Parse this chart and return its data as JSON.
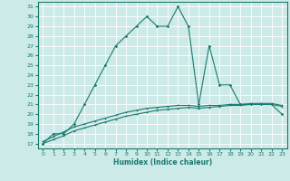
{
  "xlabel": "Humidex (Indice chaleur)",
  "background_color": "#cceae7",
  "line_color": "#1a7a6e",
  "grid_color": "#ffffff",
  "xlim": [
    -0.5,
    23.5
  ],
  "ylim": [
    16.5,
    31.5
  ],
  "yticks": [
    17,
    18,
    19,
    20,
    21,
    22,
    23,
    24,
    25,
    26,
    27,
    28,
    29,
    30,
    31
  ],
  "xticks": [
    0,
    1,
    2,
    3,
    4,
    5,
    6,
    7,
    8,
    9,
    10,
    11,
    12,
    13,
    14,
    15,
    16,
    17,
    18,
    19,
    20,
    21,
    22,
    23
  ],
  "series1_x": [
    0,
    1,
    2,
    3,
    4,
    5,
    6,
    7,
    8,
    9,
    10,
    11,
    12,
    13,
    14,
    15,
    16,
    17,
    18,
    19,
    20,
    21,
    22,
    23
  ],
  "series1_y": [
    17,
    18,
    18,
    19,
    21,
    23,
    25,
    27,
    28,
    29,
    30,
    29,
    29,
    31,
    29,
    21,
    27,
    23,
    23,
    21,
    21,
    21,
    21,
    20
  ],
  "series2_x": [
    0,
    1,
    2,
    3,
    4,
    5,
    6,
    7,
    8,
    9,
    10,
    11,
    12,
    13,
    14,
    15,
    16,
    17,
    18,
    19,
    20,
    21,
    22,
    23
  ],
  "series2_y": [
    17.0,
    17.4,
    17.8,
    18.3,
    18.6,
    18.9,
    19.2,
    19.5,
    19.8,
    20.0,
    20.2,
    20.4,
    20.5,
    20.6,
    20.7,
    20.6,
    20.7,
    20.8,
    20.9,
    20.9,
    21.0,
    21.0,
    21.0,
    20.8
  ],
  "series3_x": [
    0,
    1,
    2,
    3,
    4,
    5,
    6,
    7,
    8,
    9,
    10,
    11,
    12,
    13,
    14,
    15,
    16,
    17,
    18,
    19,
    20,
    21,
    22,
    23
  ],
  "series3_y": [
    17.2,
    17.7,
    18.2,
    18.7,
    19.0,
    19.3,
    19.6,
    19.9,
    20.2,
    20.4,
    20.6,
    20.7,
    20.8,
    20.9,
    20.9,
    20.8,
    20.9,
    20.9,
    21.0,
    21.0,
    21.1,
    21.1,
    21.1,
    20.9
  ]
}
